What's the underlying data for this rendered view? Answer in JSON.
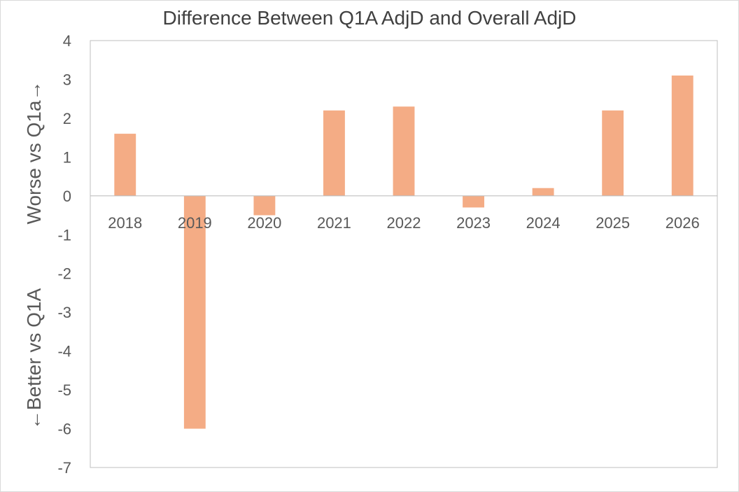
{
  "chart_data": {
    "type": "bar",
    "title": "Difference Between Q1A AdjD and Overall AdjD",
    "categories": [
      "2018",
      "2019",
      "2020",
      "2021",
      "2022",
      "2023",
      "2024",
      "2025",
      "2026"
    ],
    "values": [
      1.6,
      -6.0,
      -0.5,
      2.2,
      2.3,
      -0.3,
      0.2,
      2.2,
      3.1
    ],
    "ylabel_upper": "Worse vs Q1a→",
    "ylabel_lower": "←Better vs Q1A",
    "yticks": [
      "4",
      "3",
      "2",
      "1",
      "0",
      "-1",
      "-2",
      "-3",
      "-4",
      "-5",
      "-6",
      "-7"
    ],
    "ylim": [
      -7,
      4
    ],
    "bar_color": "#f4ac85",
    "grid": false,
    "legend": "none"
  }
}
